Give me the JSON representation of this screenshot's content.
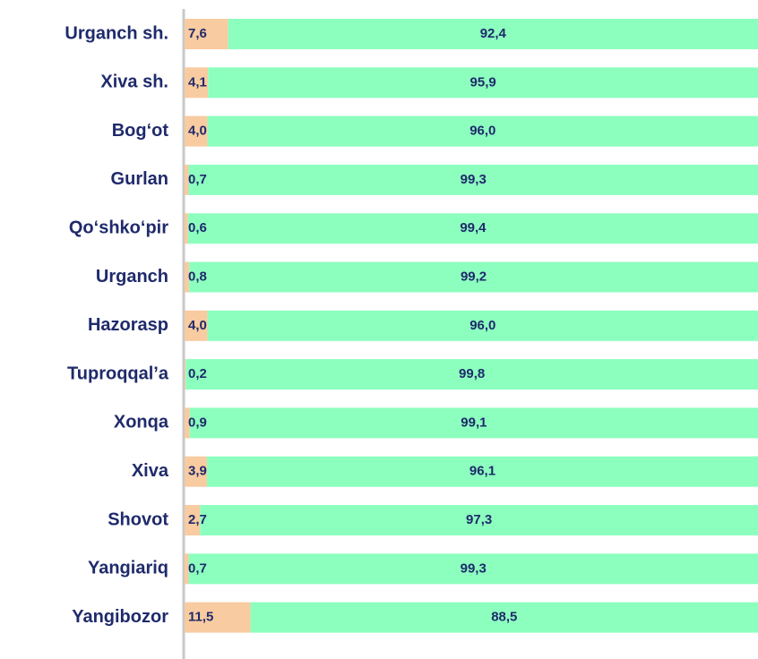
{
  "chart_data": {
    "type": "stacked_barh",
    "categories": [
      "Urganch sh.",
      "Xiva sh.",
      "Bog‘ot",
      "Gurlan",
      "Qo‘shko‘pir",
      "Urganch",
      "Hazorasp",
      "Tuproqqal’a",
      "Xonqa",
      "Xiva",
      "Shovot",
      "Yangiariq",
      "Yangibozor"
    ],
    "series": [
      {
        "color": "#f8cba0",
        "values": [
          7.6,
          4.1,
          4.0,
          0.7,
          0.6,
          0.8,
          4.0,
          0.2,
          0.9,
          3.9,
          2.7,
          0.7,
          11.5
        ],
        "value_labels": [
          "7,6",
          "4,1",
          "4,0",
          "0,7",
          "0,6",
          "0,8",
          "4,0",
          "0,2",
          "0,9",
          "3,9",
          "2,7",
          "0,7",
          "11,5"
        ]
      },
      {
        "color": "#8cffbf",
        "values": [
          92.4,
          95.9,
          96.0,
          99.3,
          99.4,
          99.2,
          96.0,
          99.8,
          99.1,
          96.1,
          97.3,
          99.3,
          88.5
        ],
        "value_labels": [
          "92,4",
          "95,9",
          "96,0",
          "99,3",
          "99,4",
          "99,2",
          "96,0",
          "99,8",
          "99,1",
          "96,1",
          "97,3",
          "99,3",
          "88,5"
        ]
      }
    ],
    "xlim": [
      0,
      100
    ]
  }
}
